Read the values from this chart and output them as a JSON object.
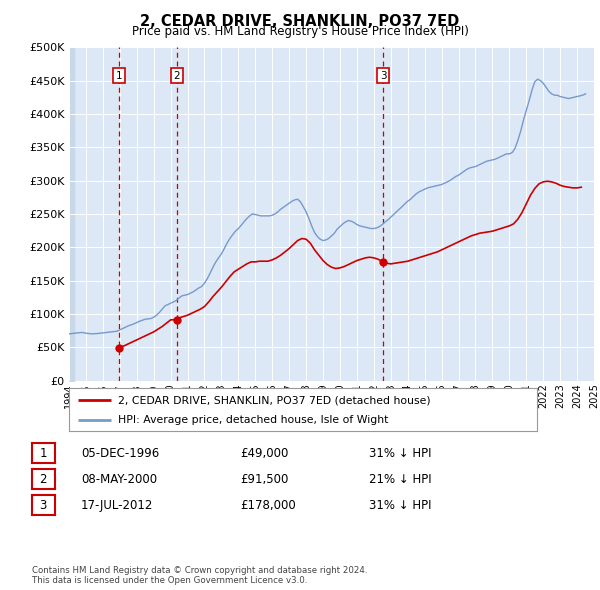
{
  "title": "2, CEDAR DRIVE, SHANKLIN, PO37 7ED",
  "subtitle": "Price paid vs. HM Land Registry's House Price Index (HPI)",
  "bg_color": "#ffffff",
  "plot_bg_color": "#dce8f5",
  "hatch_color": "#c8d8e8",
  "grid_color": "#ffffff",
  "ylim": [
    0,
    500000
  ],
  "yticks": [
    0,
    50000,
    100000,
    150000,
    200000,
    250000,
    300000,
    350000,
    400000,
    450000,
    500000
  ],
  "ytick_labels": [
    "£0",
    "£50K",
    "£100K",
    "£150K",
    "£200K",
    "£250K",
    "£300K",
    "£350K",
    "£400K",
    "£450K",
    "£500K"
  ],
  "xmin_year": 1994,
  "xmax_year": 2025,
  "xtick_years": [
    1994,
    1995,
    1996,
    1997,
    1998,
    1999,
    2000,
    2001,
    2002,
    2003,
    2004,
    2005,
    2006,
    2007,
    2008,
    2009,
    2010,
    2011,
    2012,
    2013,
    2014,
    2015,
    2016,
    2017,
    2018,
    2019,
    2020,
    2021,
    2022,
    2023,
    2024,
    2025
  ],
  "sale_color": "#cc0000",
  "hpi_color": "#7799cc",
  "sale_points": [
    {
      "date": "1996-12-05",
      "value": 49000,
      "label": "1"
    },
    {
      "date": "2000-05-08",
      "value": 91500,
      "label": "2"
    },
    {
      "date": "2012-07-17",
      "value": 178000,
      "label": "3"
    }
  ],
  "vline_color": "#cc0000",
  "legend_entries": [
    "2, CEDAR DRIVE, SHANKLIN, PO37 7ED (detached house)",
    "HPI: Average price, detached house, Isle of Wight"
  ],
  "table_rows": [
    {
      "num": "1",
      "date": "05-DEC-1996",
      "price": "£49,000",
      "hpi": "31% ↓ HPI"
    },
    {
      "num": "2",
      "date": "08-MAY-2000",
      "price": "£91,500",
      "hpi": "21% ↓ HPI"
    },
    {
      "num": "3",
      "date": "17-JUL-2012",
      "price": "£178,000",
      "hpi": "31% ↓ HPI"
    }
  ],
  "footer": "Contains HM Land Registry data © Crown copyright and database right 2024.\nThis data is licensed under the Open Government Licence v3.0.",
  "hpi_data": {
    "years": [
      1994.0,
      1994.17,
      1994.33,
      1994.5,
      1994.67,
      1994.83,
      1995.0,
      1995.17,
      1995.33,
      1995.5,
      1995.67,
      1995.83,
      1996.0,
      1996.17,
      1996.33,
      1996.5,
      1996.67,
      1996.83,
      1997.0,
      1997.17,
      1997.33,
      1997.5,
      1997.67,
      1997.83,
      1998.0,
      1998.17,
      1998.33,
      1998.5,
      1998.67,
      1998.83,
      1999.0,
      1999.17,
      1999.33,
      1999.5,
      1999.67,
      1999.83,
      2000.0,
      2000.17,
      2000.33,
      2000.5,
      2000.67,
      2000.83,
      2001.0,
      2001.17,
      2001.33,
      2001.5,
      2001.67,
      2001.83,
      2002.0,
      2002.17,
      2002.33,
      2002.5,
      2002.67,
      2002.83,
      2003.0,
      2003.17,
      2003.33,
      2003.5,
      2003.67,
      2003.83,
      2004.0,
      2004.17,
      2004.33,
      2004.5,
      2004.67,
      2004.83,
      2005.0,
      2005.17,
      2005.33,
      2005.5,
      2005.67,
      2005.83,
      2006.0,
      2006.17,
      2006.33,
      2006.5,
      2006.67,
      2006.83,
      2007.0,
      2007.17,
      2007.33,
      2007.5,
      2007.67,
      2007.83,
      2008.0,
      2008.17,
      2008.33,
      2008.5,
      2008.67,
      2008.83,
      2009.0,
      2009.17,
      2009.33,
      2009.5,
      2009.67,
      2009.83,
      2010.0,
      2010.17,
      2010.33,
      2010.5,
      2010.67,
      2010.83,
      2011.0,
      2011.17,
      2011.33,
      2011.5,
      2011.67,
      2011.83,
      2012.0,
      2012.17,
      2012.33,
      2012.5,
      2012.67,
      2012.83,
      2013.0,
      2013.17,
      2013.33,
      2013.5,
      2013.67,
      2013.83,
      2014.0,
      2014.17,
      2014.33,
      2014.5,
      2014.67,
      2014.83,
      2015.0,
      2015.17,
      2015.33,
      2015.5,
      2015.67,
      2015.83,
      2016.0,
      2016.17,
      2016.33,
      2016.5,
      2016.67,
      2016.83,
      2017.0,
      2017.17,
      2017.33,
      2017.5,
      2017.67,
      2017.83,
      2018.0,
      2018.17,
      2018.33,
      2018.5,
      2018.67,
      2018.83,
      2019.0,
      2019.17,
      2019.33,
      2019.5,
      2019.67,
      2019.83,
      2020.0,
      2020.17,
      2020.33,
      2020.5,
      2020.67,
      2020.83,
      2021.0,
      2021.17,
      2021.33,
      2021.5,
      2021.67,
      2021.83,
      2022.0,
      2022.17,
      2022.33,
      2022.5,
      2022.67,
      2022.83,
      2023.0,
      2023.17,
      2023.33,
      2023.5,
      2023.67,
      2023.83,
      2024.0,
      2024.17,
      2024.33,
      2024.5
    ],
    "values": [
      70000,
      70500,
      71000,
      71500,
      72000,
      72000,
      71000,
      70500,
      70000,
      70200,
      70500,
      71000,
      71500,
      72000,
      72500,
      73000,
      73500,
      74000,
      76000,
      78000,
      80000,
      82000,
      83500,
      85000,
      87000,
      89000,
      90500,
      92000,
      92500,
      93000,
      95000,
      98000,
      102000,
      107000,
      112000,
      114000,
      116000,
      118000,
      120000,
      124000,
      127000,
      128000,
      129000,
      131000,
      133000,
      136000,
      139000,
      141000,
      146000,
      153000,
      161000,
      170000,
      178000,
      184000,
      190000,
      198000,
      206000,
      213000,
      219000,
      224000,
      228000,
      233000,
      238000,
      243000,
      247000,
      250000,
      249000,
      248000,
      247000,
      247000,
      247000,
      247000,
      248000,
      250000,
      253000,
      257000,
      260000,
      263000,
      266000,
      269000,
      271000,
      272000,
      268000,
      261000,
      253000,
      243000,
      232000,
      222000,
      216000,
      212000,
      210000,
      211000,
      213000,
      217000,
      221000,
      227000,
      231000,
      235000,
      238000,
      240000,
      239000,
      237000,
      234000,
      232000,
      231000,
      230000,
      229000,
      228000,
      228000,
      229000,
      231000,
      234000,
      238000,
      241000,
      245000,
      249000,
      253000,
      257000,
      261000,
      265000,
      269000,
      272000,
      276000,
      280000,
      283000,
      285000,
      287000,
      289000,
      290000,
      291000,
      292000,
      293000,
      294000,
      296000,
      298000,
      300000,
      303000,
      306000,
      308000,
      311000,
      314000,
      317000,
      319000,
      320000,
      321000,
      323000,
      325000,
      327000,
      329000,
      330000,
      331000,
      332000,
      334000,
      336000,
      338000,
      340000,
      340000,
      342000,
      348000,
      360000,
      374000,
      390000,
      405000,
      420000,
      435000,
      448000,
      452000,
      450000,
      446000,
      440000,
      434000,
      430000,
      428000,
      428000,
      426000,
      425000,
      424000,
      423000,
      424000,
      425000,
      426000,
      427000,
      428000,
      430000
    ]
  },
  "sale_line_data": {
    "years": [
      1996.92,
      1997.0,
      1997.25,
      1997.5,
      1997.75,
      1998.0,
      1998.25,
      1998.5,
      1998.75,
      1999.0,
      1999.25,
      1999.5,
      1999.75,
      2000.0,
      2000.37,
      2000.5,
      2000.75,
      2001.0,
      2001.25,
      2001.5,
      2001.75,
      2002.0,
      2002.25,
      2002.5,
      2002.75,
      2003.0,
      2003.25,
      2003.5,
      2003.75,
      2004.0,
      2004.25,
      2004.5,
      2004.75,
      2005.0,
      2005.25,
      2005.5,
      2005.75,
      2006.0,
      2006.25,
      2006.5,
      2006.75,
      2007.0,
      2007.25,
      2007.5,
      2007.75,
      2008.0,
      2008.25,
      2008.5,
      2008.75,
      2009.0,
      2009.25,
      2009.5,
      2009.75,
      2010.0,
      2010.25,
      2010.5,
      2010.75,
      2011.0,
      2011.25,
      2011.5,
      2011.75,
      2012.0,
      2012.25,
      2012.54,
      2012.75,
      2013.0,
      2013.25,
      2013.5,
      2013.75,
      2014.0,
      2014.25,
      2014.5,
      2014.75,
      2015.0,
      2015.25,
      2015.5,
      2015.75,
      2016.0,
      2016.25,
      2016.5,
      2016.75,
      2017.0,
      2017.25,
      2017.5,
      2017.75,
      2018.0,
      2018.25,
      2018.5,
      2018.75,
      2019.0,
      2019.25,
      2019.5,
      2019.75,
      2020.0,
      2020.25,
      2020.5,
      2020.75,
      2021.0,
      2021.25,
      2021.5,
      2021.75,
      2022.0,
      2022.25,
      2022.5,
      2022.75,
      2023.0,
      2023.25,
      2023.5,
      2023.75,
      2024.0,
      2024.25
    ],
    "values": [
      49000,
      50000,
      52000,
      55000,
      58000,
      61000,
      64000,
      67000,
      70000,
      73000,
      77000,
      81000,
      86000,
      91000,
      91500,
      94000,
      96000,
      98000,
      101000,
      104000,
      107000,
      111000,
      118000,
      126000,
      133000,
      140000,
      148000,
      156000,
      163000,
      167000,
      171000,
      175000,
      178000,
      178000,
      179000,
      179000,
      179000,
      181000,
      184000,
      188000,
      193000,
      198000,
      204000,
      210000,
      213000,
      212000,
      206000,
      196000,
      188000,
      180000,
      174000,
      170000,
      168000,
      169000,
      171000,
      174000,
      177000,
      180000,
      182000,
      184000,
      185000,
      184000,
      182000,
      178000,
      176000,
      175000,
      176000,
      177000,
      178000,
      179000,
      181000,
      183000,
      185000,
      187000,
      189000,
      191000,
      193000,
      196000,
      199000,
      202000,
      205000,
      208000,
      211000,
      214000,
      217000,
      219000,
      221000,
      222000,
      223000,
      224000,
      226000,
      228000,
      230000,
      232000,
      235000,
      242000,
      252000,
      265000,
      278000,
      288000,
      295000,
      298000,
      299000,
      298000,
      296000,
      293000,
      291000,
      290000,
      289000,
      289000,
      290000
    ]
  }
}
